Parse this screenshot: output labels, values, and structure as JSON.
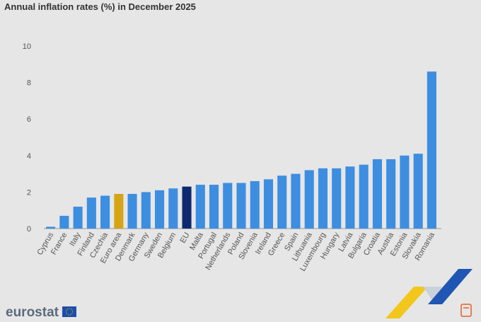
{
  "chart_data": {
    "type": "bar",
    "title": "Annual inflation rates (%) in December 2025",
    "categories": [
      "Cyprus",
      "France",
      "Italy",
      "Finland",
      "Czechia",
      "Euro area",
      "Denmark",
      "Germany",
      "Sweden",
      "Belgium",
      "EU",
      "Malta",
      "Portugal",
      "Netherlands",
      "Poland",
      "Slovenia",
      "Ireland",
      "Greece",
      "Spain",
      "Lithuania",
      "Luxembourg",
      "Hungary",
      "Latvia",
      "Bulgaria",
      "Croatia",
      "Austria",
      "Estonia",
      "Slovakia",
      "Romania"
    ],
    "values": [
      0.1,
      0.7,
      1.2,
      1.7,
      1.8,
      1.9,
      1.9,
      2.0,
      2.1,
      2.2,
      2.3,
      2.4,
      2.4,
      2.5,
      2.5,
      2.6,
      2.7,
      2.9,
      3.0,
      3.2,
      3.3,
      3.3,
      3.4,
      3.5,
      3.8,
      3.8,
      4.0,
      4.1,
      8.6
    ],
    "colors": [
      "#3d8ee0",
      "#3d8ee0",
      "#3d8ee0",
      "#3d8ee0",
      "#3d8ee0",
      "#d4a514",
      "#3d8ee0",
      "#3d8ee0",
      "#3d8ee0",
      "#3d8ee0",
      "#0d2a70",
      "#3d8ee0",
      "#3d8ee0",
      "#3d8ee0",
      "#3d8ee0",
      "#3d8ee0",
      "#3d8ee0",
      "#3d8ee0",
      "#3d8ee0",
      "#3d8ee0",
      "#3d8ee0",
      "#3d8ee0",
      "#3d8ee0",
      "#3d8ee0",
      "#3d8ee0",
      "#3d8ee0",
      "#3d8ee0",
      "#3d8ee0",
      "#3d8ee0"
    ],
    "ylim": [
      0,
      10
    ],
    "yticks": [
      0,
      2,
      4,
      6,
      8,
      10
    ],
    "grid": false
  },
  "footer": {
    "brand": "eurostat"
  }
}
